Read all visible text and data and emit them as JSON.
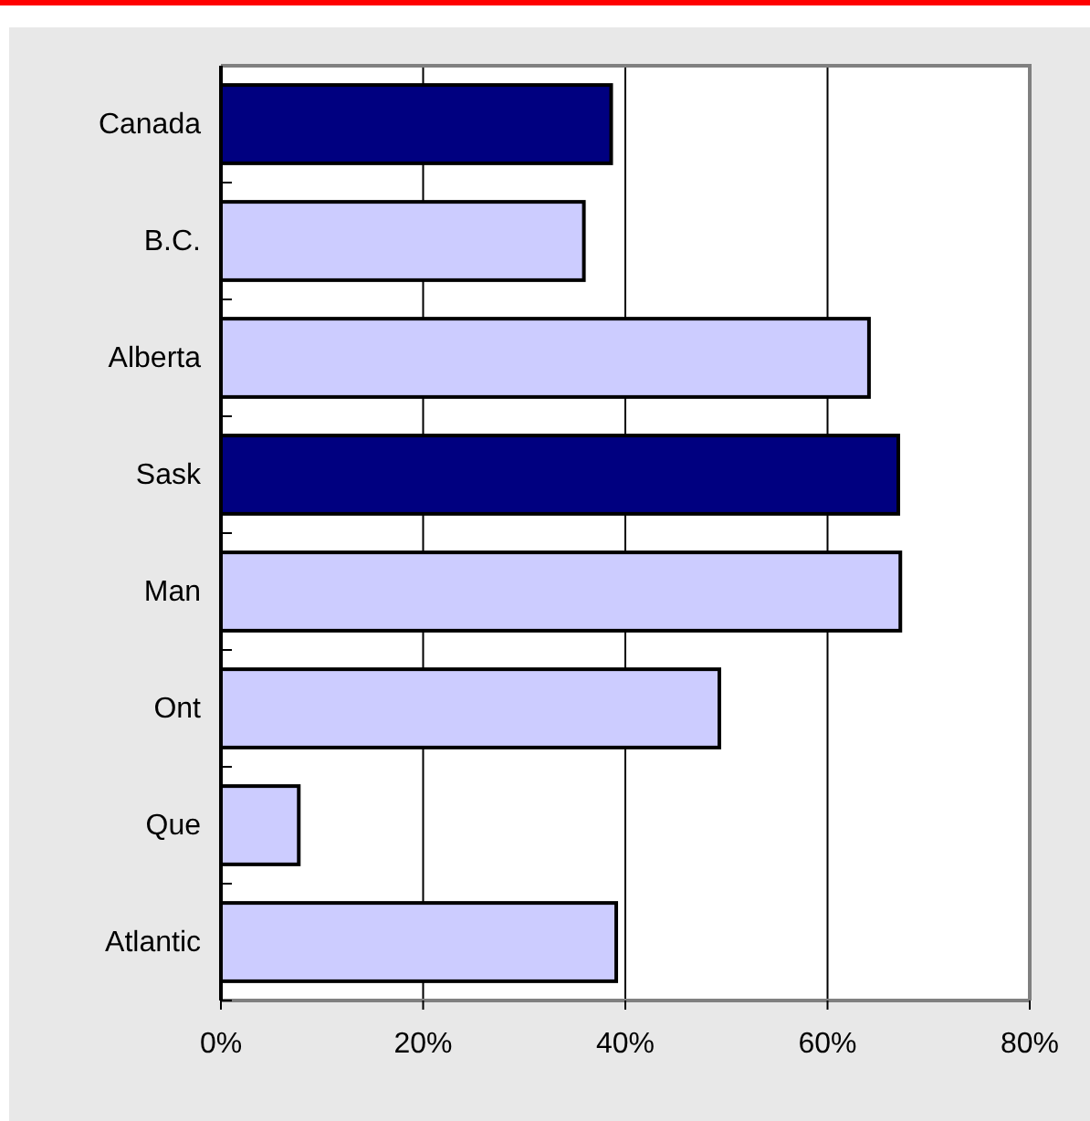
{
  "chart_data": {
    "type": "bar",
    "orientation": "horizontal",
    "categories": [
      "Canada",
      "B.C.",
      "Alberta",
      "Sask",
      "Man",
      "Ont",
      "Que",
      "Atlantic"
    ],
    "values": [
      38.6,
      35.9,
      64.1,
      67.0,
      67.2,
      49.3,
      7.7,
      39.1
    ],
    "colors": [
      "#000080",
      "#ccccff",
      "#ccccff",
      "#000080",
      "#ccccff",
      "#ccccff",
      "#ccccff",
      "#ccccff"
    ],
    "xlim": [
      0,
      80
    ],
    "xticks": [
      {
        "value": 0,
        "label": "0%"
      },
      {
        "value": 20,
        "label": "20%"
      },
      {
        "value": 40,
        "label": "40%"
      },
      {
        "value": 60,
        "label": "60%"
      },
      {
        "value": 80,
        "label": "80%"
      }
    ],
    "grid": "x"
  }
}
